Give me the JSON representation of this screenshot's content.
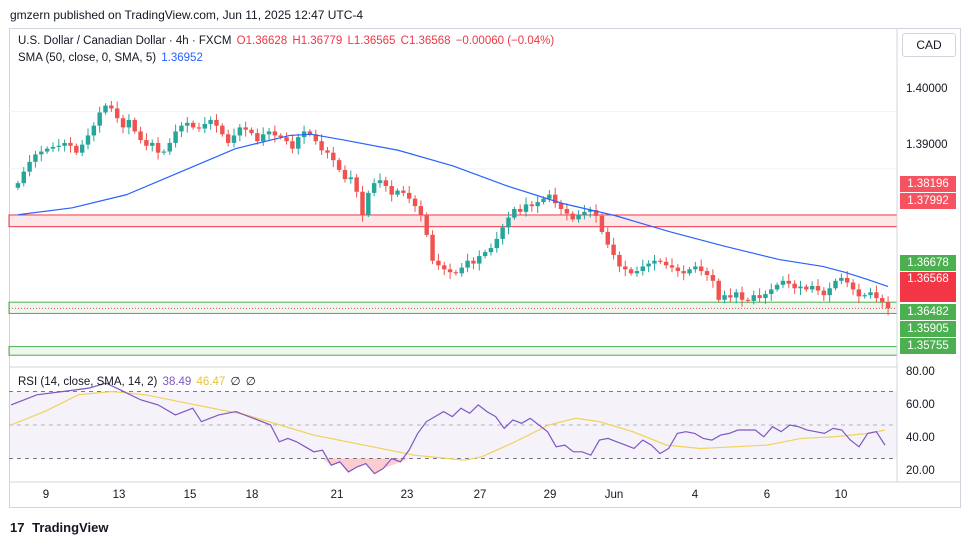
{
  "header": {
    "publisher": "gmzern published on TradingView.com, Jun 11, 2025 12:47 UTC-4"
  },
  "legend": {
    "symbol": "U.S. Dollar / Canadian Dollar · 4h · FXCM",
    "open": "O1.36628",
    "high": "H1.36779",
    "low": "L1.36565",
    "close": "C1.36568",
    "change": "−0.00060 (−0.04%)",
    "sma_label": "SMA (50, close, 0, SMA, 5)",
    "sma_value": "1.36952",
    "rsi_label": "RSI (14, close, SMA, 14, 2)",
    "rsi_value": "38.49",
    "rsi_sma_value": "46.47",
    "rsi_extra1": "∅",
    "rsi_extra2": "∅"
  },
  "currency": "CAD",
  "branding": {
    "logo": "17",
    "name": "TradingView"
  },
  "colors": {
    "up": "#26a69a",
    "down": "#ef5350",
    "sma": "#2962ff",
    "rsi": "#7e57c2",
    "rsi_sma": "#f0d35b",
    "red_zone": "#f23645",
    "green_zone": "#4caf50"
  },
  "chart_data": [
    {
      "type": "candlestick",
      "symbol": "USDCAD",
      "timeframe": "4h",
      "x_ticks": [
        "9",
        "13",
        "15",
        "18",
        "21",
        "23",
        "27",
        "29",
        "Jun",
        "4",
        "6",
        "10"
      ],
      "y_ticks": [
        "1.40000",
        "1.39000"
      ],
      "ylim": [
        1.3555,
        1.4145
      ],
      "close": [
        1.3875,
        1.3895,
        1.3912,
        1.3925,
        1.393,
        1.3935,
        1.3938,
        1.394,
        1.3945,
        1.394,
        1.3928,
        1.3942,
        1.3958,
        1.3975,
        1.3998,
        1.401,
        1.4005,
        1.3988,
        1.3972,
        1.3985,
        1.3965,
        1.395,
        1.394,
        1.3945,
        1.3928,
        1.393,
        1.3945,
        1.3965,
        1.3975,
        1.398,
        1.3972,
        1.397,
        1.3978,
        1.3985,
        1.3975,
        1.396,
        1.3945,
        1.3958,
        1.3972,
        1.3968,
        1.3962,
        1.3948,
        1.396,
        1.3965,
        1.3958,
        1.3955,
        1.3948,
        1.3935,
        1.3955,
        1.3965,
        1.396,
        1.3948,
        1.3932,
        1.3928,
        1.3915,
        1.3898,
        1.3882,
        1.3885,
        1.386,
        1.382,
        1.3858,
        1.3875,
        1.388,
        1.387,
        1.3855,
        1.3862,
        1.3858,
        1.3848,
        1.3835,
        1.382,
        1.3785,
        1.374,
        1.3732,
        1.3725,
        1.372,
        1.3718,
        1.3728,
        1.374,
        1.3735,
        1.3748,
        1.3755,
        1.3762,
        1.3778,
        1.3798,
        1.3815,
        1.383,
        1.3825,
        1.3838,
        1.3835,
        1.3842,
        1.3848,
        1.3855,
        1.384,
        1.383,
        1.3822,
        1.3812,
        1.382,
        1.3825,
        1.3828,
        1.3818,
        1.379,
        1.3768,
        1.375,
        1.373,
        1.3725,
        1.3718,
        1.3722,
        1.373,
        1.3735,
        1.374,
        1.3738,
        1.3732,
        1.3728,
        1.3722,
        1.3718,
        1.3725,
        1.373,
        1.3722,
        1.3715,
        1.3705,
        1.3672,
        1.368,
        1.3676,
        1.3685,
        1.3672,
        1.367,
        1.368,
        1.3675,
        1.3682,
        1.369,
        1.3698,
        1.3705,
        1.37,
        1.3692,
        1.3695,
        1.369,
        1.3696,
        1.3688,
        1.368,
        1.3692,
        1.3705,
        1.371,
        1.3702,
        1.369,
        1.3678,
        1.368,
        1.3685,
        1.3675,
        1.3668,
        1.3657
      ],
      "sma": [
        [
          0,
          1.382
        ],
        [
          10,
          1.3832
        ],
        [
          20,
          1.3855
        ],
        [
          30,
          1.3895
        ],
        [
          40,
          1.3935
        ],
        [
          50,
          1.3958
        ],
        [
          54,
          1.396
        ],
        [
          60,
          1.395
        ],
        [
          70,
          1.3932
        ],
        [
          80,
          1.3905
        ],
        [
          90,
          1.387
        ],
        [
          100,
          1.384
        ],
        [
          110,
          1.3818
        ],
        [
          120,
          1.379
        ],
        [
          130,
          1.3765
        ],
        [
          140,
          1.3742
        ],
        [
          148,
          1.373
        ],
        [
          152,
          1.372
        ],
        [
          156,
          1.3708
        ],
        [
          160,
          1.3695
        ]
      ],
      "red_zone": [
        1.37992,
        1.38196
      ],
      "green_zone_upper": [
        1.36482,
        1.36678
      ],
      "green_zone_lower": [
        1.35755,
        1.35905
      ]
    },
    {
      "type": "line",
      "title": "RSI (14, close, SMA, 14, 2)",
      "y_ticks": [
        "80.00",
        "60.00",
        "40.00",
        "20.00"
      ],
      "ylim": [
        16,
        84
      ],
      "bands": [
        70,
        50,
        30
      ],
      "series": [
        {
          "name": "RSI",
          "values": [
            [
              0,
              62
            ],
            [
              6,
              68
            ],
            [
              12,
              70
            ],
            [
              18,
              72
            ],
            [
              22,
              75
            ],
            [
              26,
              70
            ],
            [
              30,
              65
            ],
            [
              34,
              62
            ],
            [
              38,
              56
            ],
            [
              42,
              60
            ],
            [
              44,
              52
            ],
            [
              48,
              56
            ],
            [
              52,
              58
            ],
            [
              56,
              54
            ],
            [
              60,
              50
            ],
            [
              62,
              40
            ],
            [
              64,
              42
            ],
            [
              66,
              40
            ],
            [
              68,
              37
            ],
            [
              70,
              34
            ],
            [
              72,
              35
            ],
            [
              74,
              26
            ],
            [
              76,
              28
            ],
            [
              78,
              22
            ],
            [
              80,
              25
            ],
            [
              82,
              27
            ],
            [
              84,
              21
            ],
            [
              86,
              24
            ],
            [
              88,
              30
            ],
            [
              90,
              28
            ],
            [
              92,
              35
            ],
            [
              94,
              45
            ],
            [
              96,
              52
            ],
            [
              98,
              55
            ],
            [
              100,
              58
            ],
            [
              102,
              55
            ],
            [
              104,
              60
            ],
            [
              106,
              57
            ],
            [
              108,
              62
            ],
            [
              110,
              58
            ],
            [
              112,
              55
            ],
            [
              114,
              48
            ],
            [
              116,
              53
            ],
            [
              118,
              51
            ],
            [
              120,
              54
            ],
            [
              122,
              50
            ],
            [
              124,
              46
            ],
            [
              126,
              37
            ],
            [
              128,
              38
            ],
            [
              130,
              34
            ],
            [
              132,
              34
            ],
            [
              134,
              32
            ],
            [
              136,
              41
            ],
            [
              138,
              42
            ],
            [
              140,
              40
            ],
            [
              142,
              38
            ],
            [
              144,
              36
            ],
            [
              146,
              41
            ],
            [
              148,
              38
            ],
            [
              150,
              33
            ],
            [
              152,
              36
            ],
            [
              154,
              45
            ],
            [
              156,
              46
            ],
            [
              158,
              45
            ],
            [
              160,
              42
            ],
            [
              162,
              41
            ],
            [
              164,
              44
            ],
            [
              166,
              45
            ],
            [
              168,
              47
            ],
            [
              170,
              47
            ],
            [
              172,
              47
            ],
            [
              174,
              43
            ],
            [
              176,
              49
            ],
            [
              178,
              46
            ],
            [
              180,
              50
            ],
            [
              182,
              49
            ],
            [
              184,
              47
            ],
            [
              186,
              46
            ],
            [
              188,
              45
            ],
            [
              190,
              48
            ],
            [
              192,
              47
            ],
            [
              194,
              41
            ],
            [
              196,
              37
            ],
            [
              198,
              45
            ],
            [
              200,
              46
            ],
            [
              202,
              38
            ]
          ]
        },
        {
          "name": "SMA",
          "values": [
            [
              0,
              50
            ],
            [
              10,
              58
            ],
            [
              20,
              68
            ],
            [
              30,
              70
            ],
            [
              40,
              68
            ],
            [
              50,
              64
            ],
            [
              60,
              60
            ],
            [
              70,
              56
            ],
            [
              80,
              50
            ],
            [
              90,
              44
            ],
            [
              100,
              40
            ],
            [
              110,
              36
            ],
            [
              120,
              32
            ],
            [
              130,
              30
            ],
            [
              135,
              29
            ],
            [
              140,
              31
            ],
            [
              150,
              40
            ],
            [
              160,
              50
            ],
            [
              168,
              54
            ],
            [
              175,
              52
            ],
            [
              185,
              46
            ],
            [
              195,
              38
            ],
            [
              205,
              36
            ],
            [
              215,
              37
            ],
            [
              225,
              38
            ],
            [
              235,
              42
            ],
            [
              245,
              43
            ],
            [
              255,
              45
            ],
            [
              260,
              47
            ]
          ]
        }
      ]
    }
  ]
}
